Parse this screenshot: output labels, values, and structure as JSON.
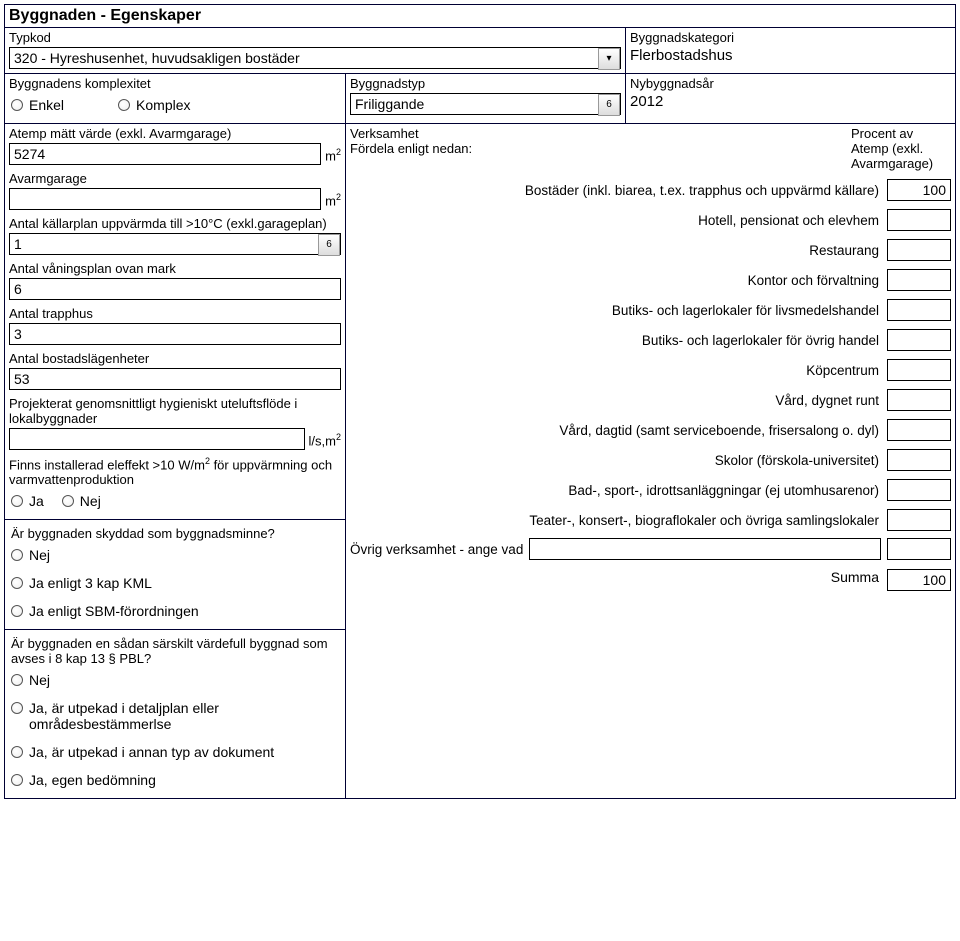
{
  "title": "Byggnaden - Egenskaper",
  "top": {
    "typkod_label": "Typkod",
    "typkod_value": "320 - Hyreshusenhet, huvudsakligen bostäder",
    "kategori_label": "Byggnadskategori",
    "kategori_value": "Flerbostadshus",
    "komplexitet_label": "Byggnadens komplexitet",
    "enkel": "Enkel",
    "komplex": "Komplex",
    "byggnadstyp_label": "Byggnadstyp",
    "byggnadstyp_value": "Friliggande",
    "byggnadstyp_dd": "6",
    "nybyggnadsar_label": "Nybyggnadsår",
    "nybyggnadsar_value": "2012"
  },
  "left": {
    "atemp_label": "Atemp mätt värde (exkl. Avarmgarage)",
    "atemp_value": "5274",
    "m2": "m",
    "avarmgarage_label": "Avarmgarage",
    "avarmgarage_value": "",
    "kallarplan_label": "Antal källarplan uppvärmda till >10°C (exkl.garageplan)",
    "kallarplan_value": "1",
    "kallarplan_dd": "6",
    "vaningsplan_label": "Antal våningsplan ovan mark",
    "vaningsplan_value": "6",
    "trapphus_label": "Antal trapphus",
    "trapphus_value": "3",
    "bostad_label": "Antal bostadslägenheter",
    "bostad_value": "53",
    "hygien_label": "Projekterat genomsnittligt hygieniskt uteluftsflöde i lokalbyggnader",
    "hygien_value": "",
    "lsm2": "l/s,m",
    "eleffekt_label_1": "Finns installerad eleffekt >10 W/m",
    "eleffekt_label_2": " för uppvärmning och varmvattenproduktion",
    "ja": "Ja",
    "nej": "Nej",
    "skyddad_label": "Är byggnaden skyddad som byggnadsminne?",
    "opt_nej": "Nej",
    "opt_kml": "Ja enligt 3 kap KML",
    "opt_sbm": "Ja enligt SBM-förordningen",
    "pbl_label": "Är byggnaden en sådan särskilt värdefull byggnad som avses i 8 kap 13 § PBL?",
    "opt_nej2": "Nej",
    "opt_detaljplan": "Ja, är utpekad i detaljplan eller områdesbestämmerlse",
    "opt_annan": "Ja, är utpekad i annan typ av dokument",
    "opt_egen": "Ja, egen bedömning"
  },
  "right": {
    "verksamhet_label": "Verksamhet",
    "fordela_label": "Fördela enligt nedan:",
    "procent_label": "Procent av Atemp (exkl. Avarmgarage)",
    "rows": [
      {
        "label": "Bostäder (inkl. biarea, t.ex. trapphus och uppvärmd källare)",
        "value": "100"
      },
      {
        "label": "Hotell, pensionat och elevhem",
        "value": ""
      },
      {
        "label": "Restaurang",
        "value": ""
      },
      {
        "label": "Kontor och förvaltning",
        "value": ""
      },
      {
        "label": "Butiks- och lagerlokaler för livsmedelshandel",
        "value": ""
      },
      {
        "label": "Butiks- och lagerlokaler för övrig handel",
        "value": ""
      },
      {
        "label": "Köpcentrum",
        "value": ""
      },
      {
        "label": "Vård, dygnet runt",
        "value": ""
      },
      {
        "label": "Vård, dagtid (samt serviceboende, frisersalong o. dyl)",
        "value": ""
      },
      {
        "label": "Skolor (förskola-universitet)",
        "value": ""
      },
      {
        "label": "Bad-, sport-, idrottsanläggningar (ej utomhusarenor)",
        "value": ""
      },
      {
        "label": "Teater-, konsert-, biograflokaler och övriga samlingslokaler",
        "value": ""
      }
    ],
    "ovrig_label": "Övrig verksamhet - ange vad",
    "ovrig_value": "",
    "ovrig_box": "",
    "summa_label": "Summa",
    "summa_value": "100"
  }
}
